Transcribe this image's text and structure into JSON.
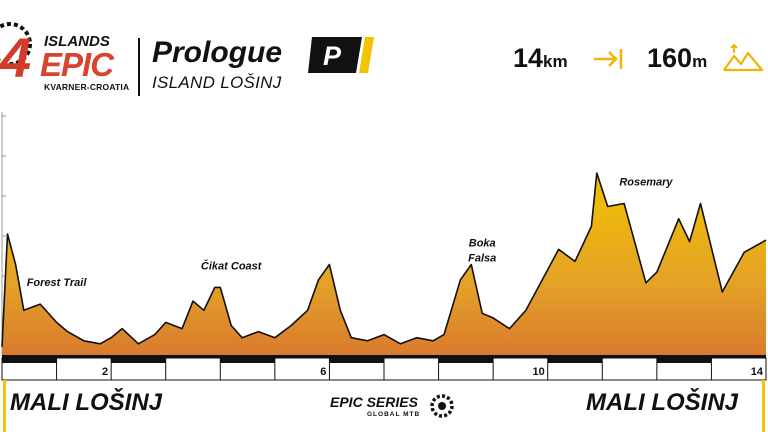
{
  "header": {
    "logo": {
      "number": "4",
      "islands": "ISLANDS",
      "epic": "EPIC",
      "sub": "KVARNER-CROATIA"
    },
    "title": "Prologue",
    "badge": "P",
    "subtitle": "ISLAND LOŠINJ",
    "distance": {
      "value": "14",
      "unit": "km",
      "icon": "distance-arrow-icon"
    },
    "elevation": {
      "value": "160",
      "unit": "m",
      "icon": "mountains-icon"
    }
  },
  "profile": {
    "start_name": "MALI LOŠINJ",
    "finish_name": "MALI LOŠINJ",
    "colors": {
      "top": "#f2c200",
      "bottom": "#d97a2e",
      "line": "#111111",
      "bar": "#111111"
    }
  },
  "series": {
    "title": "EPIC SERIES",
    "sub": "GLOBAL MTB",
    "icon": "gear-icon"
  },
  "chart_data": {
    "type": "area",
    "xlabel": "",
    "ylabel": "",
    "xlim": [
      0,
      14
    ],
    "x_ticks": [
      "2",
      "6",
      "10",
      "14"
    ],
    "tick_values": [
      2,
      6,
      10,
      14
    ],
    "points": [
      [
        0,
        6
      ],
      [
        0.1,
        80
      ],
      [
        0.25,
        60
      ],
      [
        0.4,
        30
      ],
      [
        0.7,
        34
      ],
      [
        1.0,
        22
      ],
      [
        1.2,
        16
      ],
      [
        1.5,
        10
      ],
      [
        1.8,
        8
      ],
      [
        2.0,
        12
      ],
      [
        2.2,
        18
      ],
      [
        2.5,
        8
      ],
      [
        2.8,
        14
      ],
      [
        3.0,
        22
      ],
      [
        3.3,
        18
      ],
      [
        3.5,
        36
      ],
      [
        3.7,
        30
      ],
      [
        3.9,
        45
      ],
      [
        4.0,
        45
      ],
      [
        4.2,
        20
      ],
      [
        4.4,
        12
      ],
      [
        4.7,
        16
      ],
      [
        5.0,
        12
      ],
      [
        5.3,
        20
      ],
      [
        5.6,
        30
      ],
      [
        5.8,
        50
      ],
      [
        6.0,
        60
      ],
      [
        6.2,
        30
      ],
      [
        6.4,
        12
      ],
      [
        6.7,
        10
      ],
      [
        7.0,
        14
      ],
      [
        7.3,
        8
      ],
      [
        7.6,
        12
      ],
      [
        7.9,
        10
      ],
      [
        8.1,
        14
      ],
      [
        8.4,
        50
      ],
      [
        8.6,
        60
      ],
      [
        8.8,
        28
      ],
      [
        9.0,
        25
      ],
      [
        9.3,
        18
      ],
      [
        9.6,
        30
      ],
      [
        9.9,
        50
      ],
      [
        10.2,
        70
      ],
      [
        10.5,
        62
      ],
      [
        10.8,
        85
      ],
      [
        10.9,
        120
      ],
      [
        11.1,
        98
      ],
      [
        11.4,
        100
      ],
      [
        11.8,
        48
      ],
      [
        12.0,
        55
      ],
      [
        12.4,
        90
      ],
      [
        12.6,
        75
      ],
      [
        12.8,
        100
      ],
      [
        13.2,
        42
      ],
      [
        13.6,
        68
      ],
      [
        14.0,
        76
      ]
    ],
    "annotations": [
      {
        "x": 1.0,
        "text": "Forest Trail"
      },
      {
        "x": 4.2,
        "text": "Čikat Coast"
      },
      {
        "x": 8.8,
        "text": "Boka"
      },
      {
        "x": 8.8,
        "text": "Falsa"
      },
      {
        "x": 11.8,
        "text": "Rosemary"
      }
    ]
  }
}
